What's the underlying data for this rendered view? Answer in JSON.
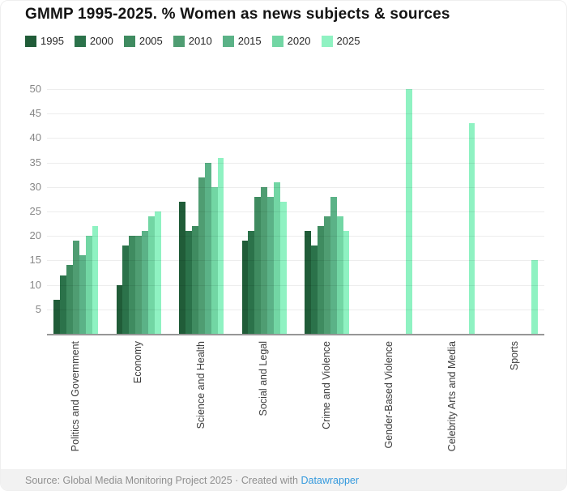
{
  "title": "GMMP 1995-2025. % Women as news subjects & sources",
  "chart_data": {
    "type": "bar",
    "title": "GMMP 1995-2025. % Women as news subjects & sources",
    "xlabel": "",
    "ylabel": "",
    "ylim": [
      0,
      50
    ],
    "yticks": [
      5,
      10,
      15,
      20,
      25,
      30,
      35,
      40,
      45,
      50
    ],
    "grid": "horizontal",
    "legend_position": "top",
    "categories": [
      "Politics and Government",
      "Economy",
      "Science and Health",
      "Social and Legal",
      "Crime and Violence",
      "Gender-Based Violence",
      "Celebrity Arts and Media",
      "Sports"
    ],
    "series": [
      {
        "name": "1995",
        "color": "#205c38",
        "values": [
          7,
          10,
          27,
          19,
          21,
          null,
          null,
          null
        ]
      },
      {
        "name": "2000",
        "color": "#2b724a",
        "values": [
          12,
          18,
          21,
          21,
          18,
          null,
          null,
          null
        ]
      },
      {
        "name": "2005",
        "color": "#3f8b60",
        "values": [
          14,
          20,
          22,
          28,
          22,
          null,
          null,
          null
        ]
      },
      {
        "name": "2010",
        "color": "#4f9d72",
        "values": [
          19,
          20,
          32,
          30,
          24,
          null,
          null,
          null
        ]
      },
      {
        "name": "2015",
        "color": "#5bb287",
        "values": [
          16,
          21,
          35,
          28,
          28,
          null,
          null,
          null
        ]
      },
      {
        "name": "2020",
        "color": "#72d6a4",
        "values": [
          20,
          24,
          30,
          31,
          24,
          null,
          null,
          null
        ]
      },
      {
        "name": "2025",
        "color": "#8ff2c2",
        "values": [
          22,
          25,
          36,
          27,
          21,
          50,
          43,
          15
        ]
      }
    ]
  },
  "footer": {
    "source": "Source: Global Media Monitoring Project 2025",
    "separator": " · ",
    "created_with": "Created with ",
    "link_label": "Datawrapper"
  }
}
